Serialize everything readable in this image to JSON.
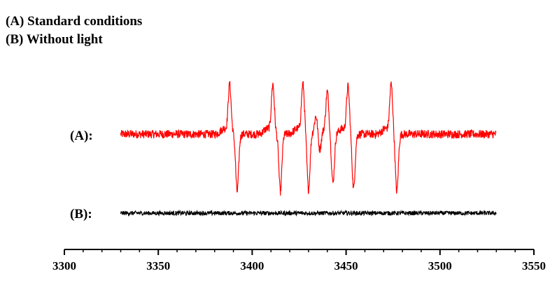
{
  "legend": {
    "a": "(A) Standard conditions",
    "b": "(B) Without light"
  },
  "chart_data": {
    "type": "line",
    "title": "",
    "xlabel": "",
    "ylabel": "",
    "xlim": [
      3300,
      3550
    ],
    "xticks": [
      3300,
      3350,
      3400,
      3450,
      3500,
      3550
    ],
    "grid": false,
    "series": [
      {
        "label": "(A):",
        "color": "#ff0000",
        "x_range": [
          3330,
          3530
        ],
        "peaks": [
          {
            "x_pos": 3388,
            "x_neg": 3392,
            "amp": 1.0
          },
          {
            "x_pos": 3411,
            "x_neg": 3415,
            "amp": 1.0
          },
          {
            "x_pos": 3427,
            "x_neg": 3430,
            "amp": 1.0
          },
          {
            "x_pos": 3434,
            "x_neg": 3436,
            "amp": 0.35
          },
          {
            "x_pos": 3440,
            "x_neg": 3443,
            "amp": 0.85
          },
          {
            "x_pos": 3451,
            "x_neg": 3454,
            "amp": 0.95
          },
          {
            "x_pos": 3474,
            "x_neg": 3477,
            "amp": 1.0
          }
        ]
      },
      {
        "label": "(B):",
        "color": "#000000",
        "x_range": [
          3330,
          3530
        ],
        "peaks": []
      }
    ]
  }
}
